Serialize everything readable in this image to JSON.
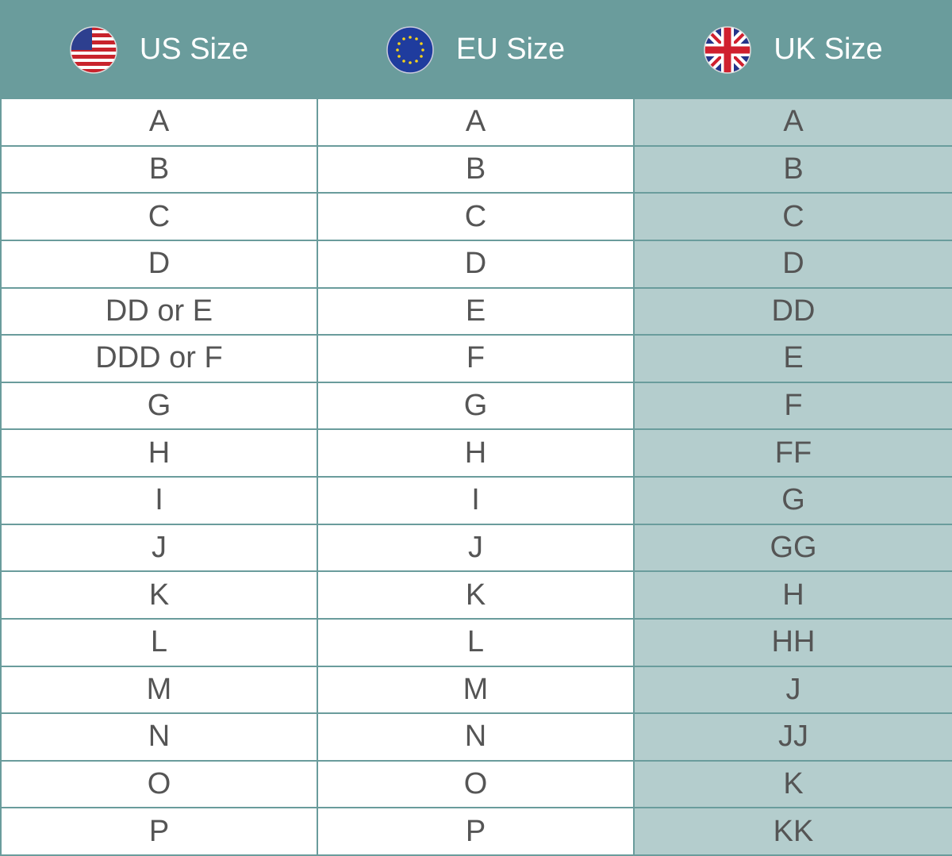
{
  "table": {
    "header": [
      "US Size",
      "EU Size",
      "UK Size"
    ],
    "rows": [
      [
        "A",
        "A",
        "A"
      ],
      [
        "B",
        "B",
        "B"
      ],
      [
        "C",
        "C",
        "C"
      ],
      [
        "D",
        "D",
        "D"
      ],
      [
        "DD or E",
        "E",
        "DD"
      ],
      [
        "DDD or F",
        "F",
        "E"
      ],
      [
        "G",
        "G",
        "F"
      ],
      [
        "H",
        "H",
        "FF"
      ],
      [
        "I",
        "I",
        "G"
      ],
      [
        "J",
        "J",
        "GG"
      ],
      [
        "K",
        "K",
        "H"
      ],
      [
        "L",
        "L",
        "HH"
      ],
      [
        "M",
        "M",
        "J"
      ],
      [
        "N",
        "N",
        "JJ"
      ],
      [
        "O",
        "O",
        "K"
      ],
      [
        "P",
        "P",
        "KK"
      ]
    ]
  }
}
